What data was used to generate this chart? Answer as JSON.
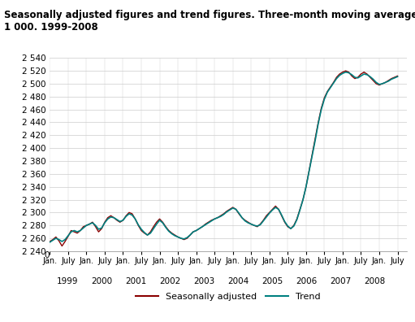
{
  "title": "Seasonally adjusted figures and trend figures. Three-month moving average in\n1 000. 1999-2008",
  "ylim": [
    2240,
    2540
  ],
  "yticks": [
    2240,
    2260,
    2280,
    2300,
    2320,
    2340,
    2360,
    2380,
    2400,
    2420,
    2440,
    2460,
    2480,
    2500,
    2520,
    2540
  ],
  "sa_color": "#8B0000",
  "trend_color": "#008080",
  "background_color": "#ffffff",
  "grid_color": "#cccccc",
  "legend_sa": "Seasonally adjusted",
  "legend_trend": "Trend",
  "seasonally_adjusted": [
    2255,
    2258,
    2262,
    2256,
    2248,
    2255,
    2263,
    2272,
    2270,
    2268,
    2272,
    2278,
    2280,
    2282,
    2285,
    2278,
    2270,
    2275,
    2285,
    2292,
    2295,
    2292,
    2288,
    2285,
    2288,
    2295,
    2300,
    2298,
    2290,
    2280,
    2272,
    2268,
    2265,
    2270,
    2278,
    2285,
    2290,
    2285,
    2278,
    2272,
    2268,
    2265,
    2262,
    2260,
    2258,
    2260,
    2265,
    2270,
    2272,
    2275,
    2278,
    2282,
    2285,
    2288,
    2290,
    2292,
    2295,
    2298,
    2302,
    2305,
    2308,
    2305,
    2298,
    2292,
    2288,
    2285,
    2282,
    2280,
    2278,
    2282,
    2288,
    2295,
    2300,
    2305,
    2310,
    2305,
    2295,
    2285,
    2278,
    2275,
    2280,
    2290,
    2305,
    2320,
    2340,
    2365,
    2390,
    2415,
    2440,
    2462,
    2478,
    2488,
    2495,
    2502,
    2510,
    2515,
    2518,
    2520,
    2518,
    2512,
    2508,
    2510,
    2515,
    2518,
    2515,
    2510,
    2505,
    2500,
    2498,
    2500,
    2502,
    2505,
    2508,
    2510,
    2512
  ],
  "trend": [
    2254,
    2257,
    2260,
    2258,
    2255,
    2258,
    2264,
    2270,
    2272,
    2270,
    2272,
    2276,
    2280,
    2282,
    2284,
    2280,
    2274,
    2276,
    2284,
    2290,
    2293,
    2292,
    2289,
    2286,
    2288,
    2294,
    2298,
    2296,
    2290,
    2281,
    2274,
    2269,
    2265,
    2268,
    2275,
    2282,
    2288,
    2284,
    2277,
    2271,
    2267,
    2264,
    2262,
    2260,
    2259,
    2261,
    2265,
    2270,
    2272,
    2275,
    2278,
    2281,
    2284,
    2287,
    2290,
    2292,
    2294,
    2297,
    2301,
    2304,
    2307,
    2305,
    2299,
    2292,
    2287,
    2284,
    2282,
    2280,
    2279,
    2281,
    2287,
    2293,
    2299,
    2304,
    2308,
    2305,
    2296,
    2286,
    2279,
    2275,
    2279,
    2289,
    2304,
    2320,
    2340,
    2364,
    2388,
    2412,
    2438,
    2460,
    2476,
    2487,
    2494,
    2501,
    2508,
    2513,
    2516,
    2518,
    2517,
    2514,
    2510,
    2509,
    2512,
    2515,
    2514,
    2511,
    2507,
    2502,
    2499,
    2500,
    2502,
    2504,
    2507,
    2509,
    2511
  ]
}
